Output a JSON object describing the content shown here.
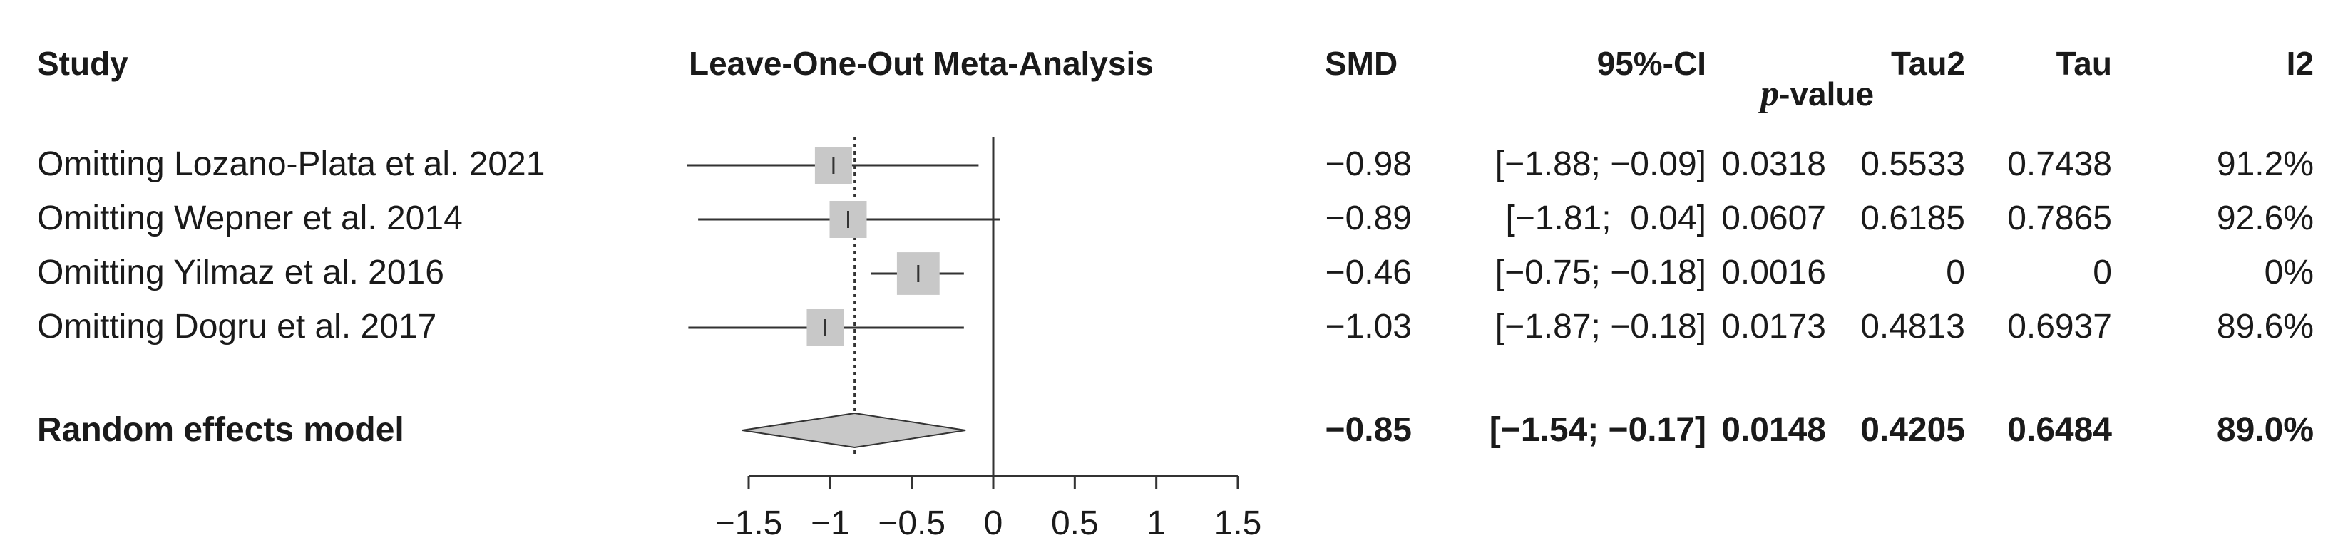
{
  "headers": {
    "study": "Study",
    "plot_title": "Leave-One-Out Meta-Analysis",
    "smd": "SMD",
    "ci": "95%-CI",
    "p_prefix": "p",
    "p_suffix": "-value",
    "tau2": "Tau2",
    "tau": "Tau",
    "i2": "I2"
  },
  "rows": [
    {
      "label": "Omitting Lozano-Plata et al. 2021",
      "smd": "−0.98",
      "ci": "[−1.88; −0.09]",
      "p": "0.0318",
      "tau2": "0.5533",
      "tau": "0.7438",
      "i2": "91.2%"
    },
    {
      "label": "Omitting Wepner et al. 2014",
      "smd": "−0.89",
      "ci": "[−1.81;  0.04]",
      "p": "0.0607",
      "tau2": "0.6185",
      "tau": "0.7865",
      "i2": "92.6%"
    },
    {
      "label": "Omitting Yilmaz et al. 2016",
      "smd": "−0.46",
      "ci": "[−0.75; −0.18]",
      "p": "0.0016",
      "tau2": "0",
      "tau": "0",
      "i2": "0%"
    },
    {
      "label": "Omitting Dogru et al. 2017",
      "smd": "−1.03",
      "ci": "[−1.87; −0.18]",
      "p": "0.0173",
      "tau2": "0.4813",
      "tau": "0.6937",
      "i2": "89.6%"
    }
  ],
  "summary": {
    "label": "Random effects model",
    "smd": "−0.85",
    "ci": "[−1.54; −0.17]",
    "p": "0.0148",
    "tau2": "0.4205",
    "tau": "0.6484",
    "i2": "89.0%"
  },
  "chart_data": {
    "type": "forest",
    "title": "Leave-One-Out Meta-Analysis",
    "x_ticks": [
      -1.5,
      -1,
      -0.5,
      0,
      0.5,
      1,
      1.5
    ],
    "x_tick_labels": [
      "−1.5",
      "−1",
      "−0.5",
      "0",
      "0.5",
      "1",
      "1.5"
    ],
    "xlim": [
      -1.5,
      1.5
    ],
    "studies": [
      {
        "label": "Omitting Lozano-Plata et al. 2021",
        "smd": -0.98,
        "lower": -1.88,
        "upper": -0.09,
        "weight": 1.0
      },
      {
        "label": "Omitting Wepner et al. 2014",
        "smd": -0.89,
        "lower": -1.81,
        "upper": 0.04,
        "weight": 1.0
      },
      {
        "label": "Omitting Yilmaz et al. 2016",
        "smd": -0.46,
        "lower": -0.75,
        "upper": -0.18,
        "weight": 1.15
      },
      {
        "label": "Omitting Dogru et al. 2017",
        "smd": -1.03,
        "lower": -1.87,
        "upper": -0.18,
        "weight": 1.0
      }
    ],
    "pooled": {
      "label": "Random effects model",
      "smd": -0.85,
      "lower": -1.54,
      "upper": -0.17
    },
    "reference_line": 0,
    "pooled_line": -0.85,
    "colors": {
      "box": "#c8c8c8",
      "diamond": "#c8c8c8",
      "line": "#333333"
    }
  }
}
